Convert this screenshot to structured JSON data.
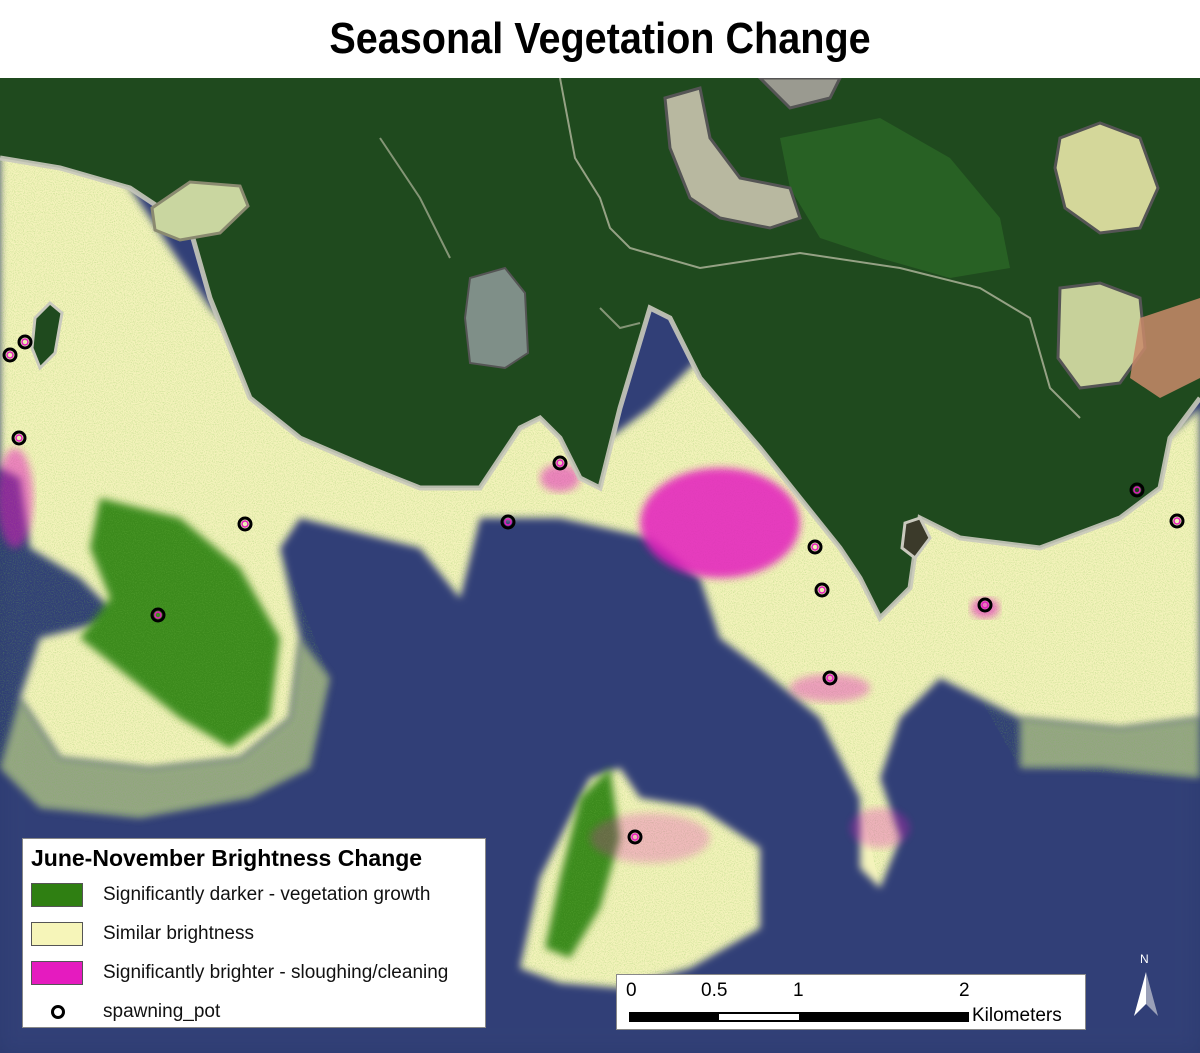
{
  "title": "Seasonal Vegetation Change",
  "legend": {
    "title": "June-November Brightness Change",
    "items": [
      {
        "label": "Significantly darker - vegetation growth",
        "color": "#2f7f12",
        "kind": "swatch"
      },
      {
        "label": "Similar brightness",
        "color": "#f6f5b9",
        "kind": "swatch"
      },
      {
        "label": "Significantly brighter - sloughing/cleaning",
        "color": "#e51bbf",
        "kind": "swatch"
      },
      {
        "label": "spawning_pot",
        "color": "#000000",
        "kind": "point"
      }
    ]
  },
  "scale_bar": {
    "ticks": [
      "0",
      "0.5",
      "1",
      "2"
    ],
    "units": "Kilometers"
  },
  "north_arrow": {
    "label": "N"
  },
  "colors": {
    "water": "#2c3a6e",
    "forest": "#1f4a1c",
    "shoreline": "#b8b8a8",
    "similar": "#f6f5b9",
    "darker": "#2f7f12",
    "brighter": "#e51bbf"
  },
  "spawning_pots_count": 16
}
